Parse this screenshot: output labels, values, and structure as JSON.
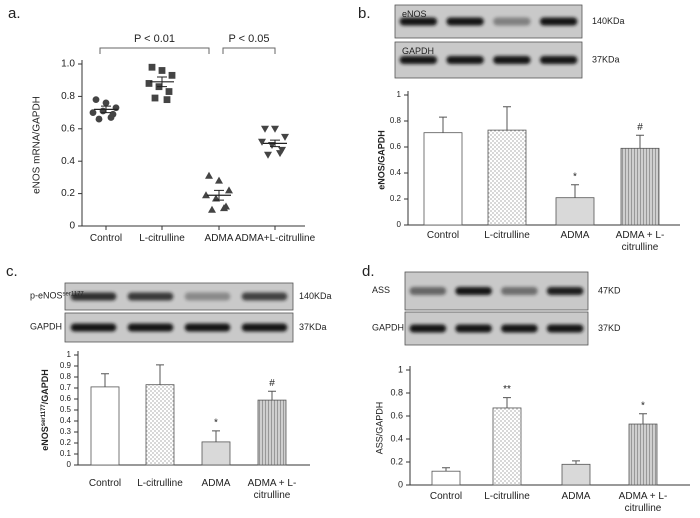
{
  "chart_data": [
    {
      "type": "dot",
      "panel": "a.",
      "ylabel": "eNOS mRNA/GAPDH",
      "categories": [
        "Control",
        "L-citrulline",
        "ADMA",
        "ADMA+L-citrulline"
      ],
      "ylim": [
        0,
        1
      ],
      "yticks": [
        0,
        0.2,
        0.4,
        0.6,
        0.8,
        {
          "value": 1,
          "label": "1.0"
        }
      ],
      "points": [
        [
          0.78,
          0.76,
          0.73,
          0.7,
          0.71,
          0.69,
          0.66,
          0.67
        ],
        [
          0.98,
          0.96,
          0.93,
          0.88,
          0.86,
          0.83,
          0.79,
          0.78
        ],
        [
          0.31,
          0.28,
          0.22,
          0.19,
          0.17,
          0.12,
          0.1,
          0.11
        ],
        [
          0.6,
          0.6,
          0.55,
          0.52,
          0.5,
          0.47,
          0.44,
          0.45
        ]
      ],
      "means": [
        0.72,
        0.89,
        0.19,
        0.51
      ],
      "errors": [
        0.02,
        0.03,
        0.03,
        0.02
      ],
      "markers": [
        "circle",
        "square",
        "triangle",
        "triangle-down"
      ],
      "color": "#444444",
      "annotations": [
        {
          "text": "P < 0.01",
          "from": 0,
          "to": 2
        },
        {
          "text": "P < 0.05",
          "from": 2,
          "to": 3
        }
      ]
    },
    {
      "type": "bar",
      "panel": "b.",
      "blot": {
        "rows": [
          {
            "label": "eNOS"
          },
          {
            "label": "GAPDH"
          }
        ],
        "sizes": [
          "140KDa",
          "37KDa"
        ]
      },
      "ylabel": "eNOS/GAPDH",
      "categories": [
        "Control",
        "L-citrulline",
        "ADMA",
        "ADMA + L-citrulline"
      ],
      "values": [
        0.71,
        0.73,
        0.21,
        0.59
      ],
      "errors": [
        0.12,
        0.18,
        0.1,
        0.1
      ],
      "significance": [
        null,
        null,
        "*",
        "#"
      ],
      "fills": [
        "#ffffff",
        "dots",
        "#d9d9d9",
        "hatch"
      ],
      "ylim": [
        0,
        1
      ],
      "yticks": [
        0,
        0.2,
        0.4,
        0.6,
        0.8,
        1
      ]
    },
    {
      "type": "bar",
      "panel": "c.",
      "blot": {
        "rows": [
          {
            "label": "p-eNOS",
            "sup": "ser1177"
          },
          {
            "label": "GAPDH"
          }
        ],
        "sizes": [
          "140KDa",
          "37KDa"
        ]
      },
      "ylabel": {
        "text": "eNOS",
        "sup": "ser1177",
        "end": "/GAPDH"
      },
      "categories": [
        "Control",
        "L-citrulline",
        "ADMA",
        "ADMA + L-citrulline"
      ],
      "values": [
        0.71,
        0.73,
        0.21,
        0.59
      ],
      "errors": [
        0.12,
        0.18,
        0.1,
        0.08
      ],
      "significance": [
        null,
        null,
        "*",
        "#"
      ],
      "fills": [
        "#ffffff",
        "dots",
        "#d9d9d9",
        "hatch"
      ],
      "ylim": [
        0,
        1
      ],
      "yticks": [
        0,
        0.1,
        0.2,
        0.3,
        0.4,
        0.5,
        0.6,
        0.7,
        0.8,
        0.9,
        1
      ]
    },
    {
      "type": "bar",
      "panel": "d.",
      "blot": {
        "rows": [
          {
            "label": "ASS"
          },
          {
            "label": "GAPDH"
          }
        ],
        "sizes": [
          "47KD",
          "37KD"
        ]
      },
      "ylabel": "ASS/GAPDH",
      "categories": [
        "Control",
        "L-citrulline",
        "ADMA",
        "ADMA + L-citrulline"
      ],
      "values": [
        0.12,
        0.67,
        0.18,
        0.53
      ],
      "errors": [
        0.03,
        0.09,
        0.03,
        0.09
      ],
      "significance": [
        null,
        "**",
        null,
        "*"
      ],
      "fills": [
        "#ffffff",
        "dots",
        "#d9d9d9",
        "hatch"
      ],
      "ylim": [
        0,
        1
      ],
      "yticks": [
        0,
        0.2,
        0.4,
        0.6,
        0.8,
        1
      ]
    }
  ]
}
